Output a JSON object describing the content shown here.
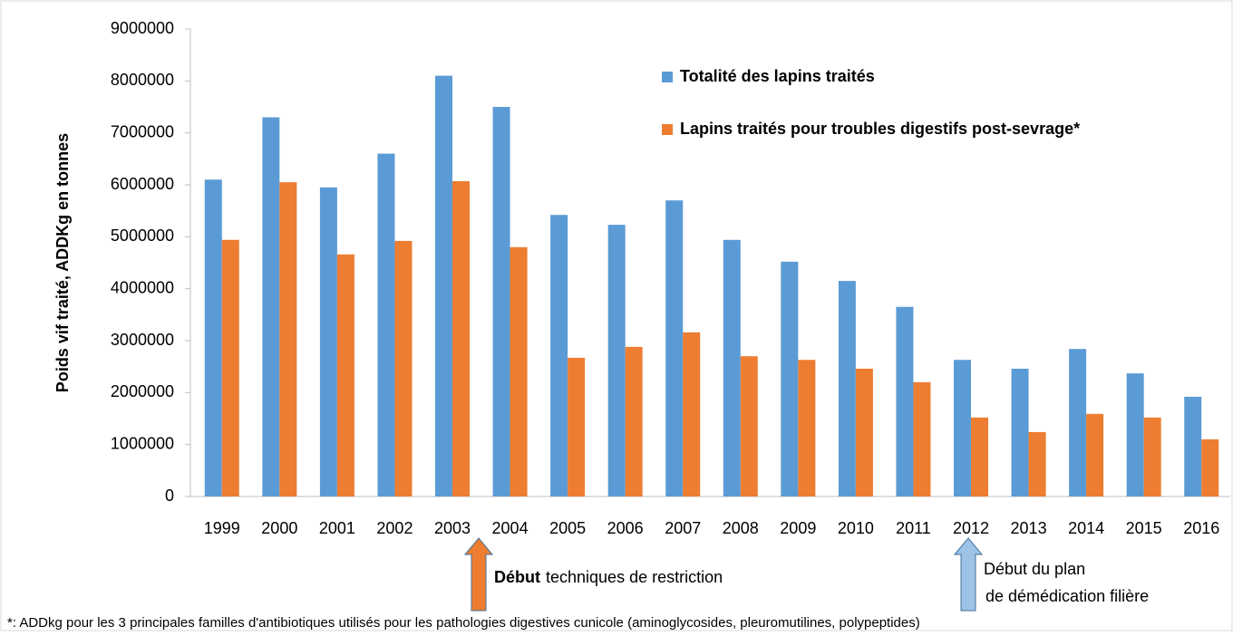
{
  "chart_data": {
    "type": "bar",
    "ylabel": "Poids  vif traité, ADDKg en tonnes",
    "categories": [
      "1999",
      "2000",
      "2001",
      "2002",
      "2003",
      "2004",
      "2005",
      "2006",
      "2007",
      "2008",
      "2009",
      "2010",
      "2011",
      "2012",
      "2013",
      "2014",
      "2015",
      "2016"
    ],
    "series": [
      {
        "name": "Totalité des lapins traités",
        "color": "#5b9bd5",
        "values": [
          6100000,
          7300000,
          5950000,
          6600000,
          8100000,
          7500000,
          5420000,
          5230000,
          5700000,
          4940000,
          4520000,
          4150000,
          3650000,
          2630000,
          2460000,
          2840000,
          2370000,
          1920000
        ]
      },
      {
        "name": "Lapins traités pour troubles digestifs post-sevrage*",
        "color": "#ed7d31",
        "values": [
          4940000,
          6050000,
          4660000,
          4920000,
          6070000,
          4800000,
          2670000,
          2880000,
          3160000,
          2700000,
          2630000,
          2460000,
          2200000,
          1520000,
          1240000,
          1590000,
          1520000,
          1100000
        ]
      }
    ],
    "ylim": [
      0,
      9000000
    ],
    "yticks": [
      0,
      1000000,
      2000000,
      3000000,
      4000000,
      5000000,
      6000000,
      7000000,
      8000000,
      9000000
    ],
    "legend": "top",
    "annotations": [
      {
        "bold": "Début",
        "text": "techniques de restriction",
        "color": "#ed7d31"
      },
      {
        "lines": [
          "Début du plan",
          "de démédication filière"
        ],
        "color": "#9dc3e6"
      }
    ],
    "footnote": "*: ADDkg pour les 3 principales familles d'antibiotiques utilisés pour les pathologies digestives cunicole (aminoglycosides, pleuromutilines, polypeptides)"
  }
}
